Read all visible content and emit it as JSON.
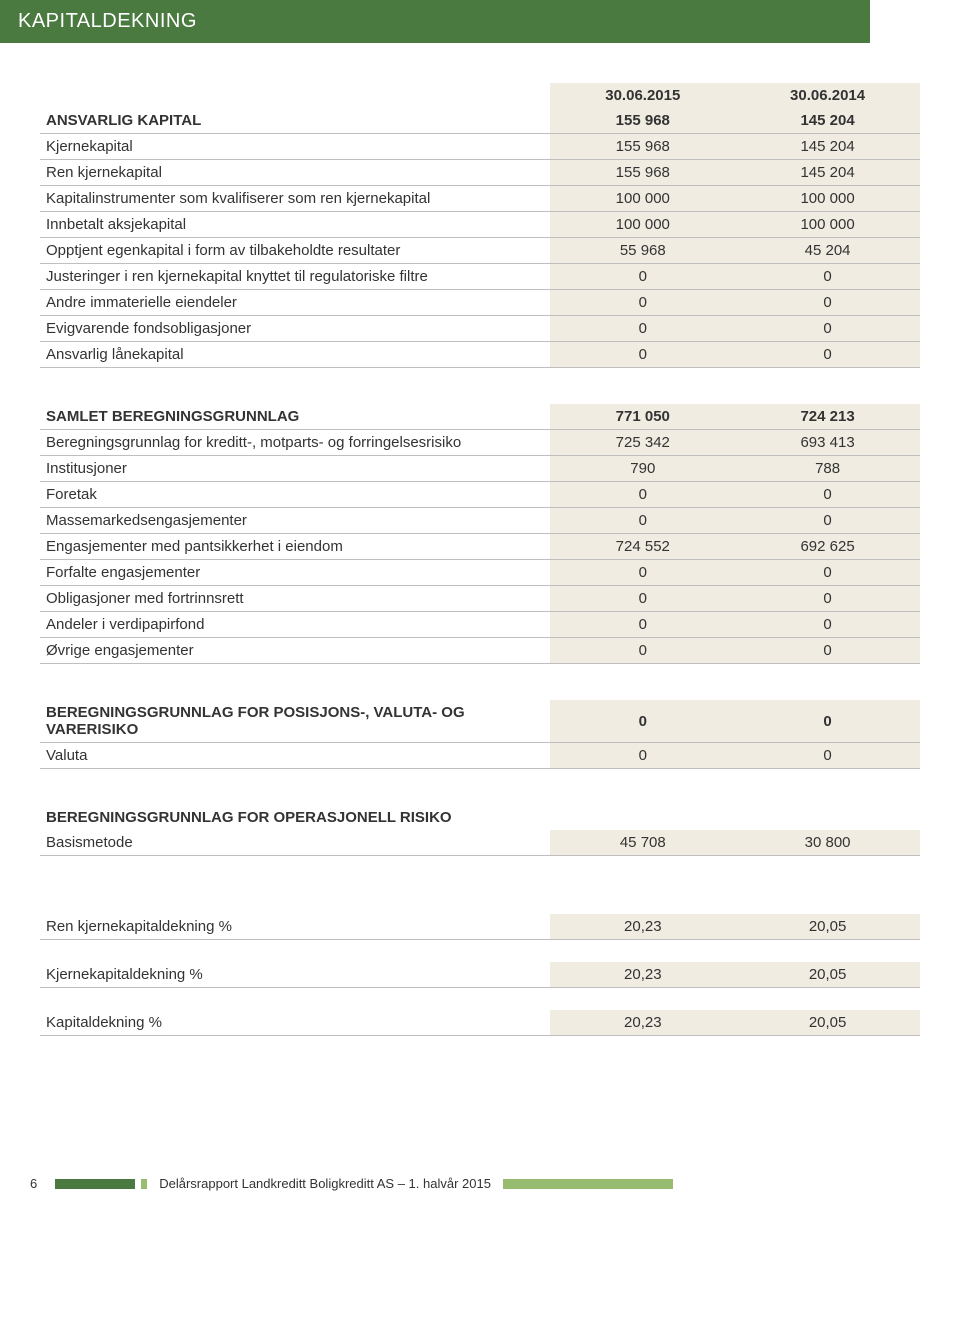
{
  "title": "KAPITALDEKNING",
  "col_headers": {
    "c1": "30.06.2015",
    "c2": "30.06.2014"
  },
  "section1": {
    "header": {
      "label": "ANSVARLIG KAPITAL",
      "c1": "155 968",
      "c2": "145 204"
    },
    "rows": [
      {
        "label": "Kjernekapital",
        "c1": "155 968",
        "c2": "145 204"
      },
      {
        "label": "Ren kjernekapital",
        "c1": "155 968",
        "c2": "145 204"
      },
      {
        "label": "Kapitalinstrumenter som kvalifiserer som ren kjernekapital",
        "c1": "100 000",
        "c2": "100 000"
      },
      {
        "label": "Innbetalt aksjekapital",
        "c1": "100 000",
        "c2": "100 000"
      },
      {
        "label": "Opptjent egenkapital i form av tilbakeholdte resultater",
        "c1": "55 968",
        "c2": "45 204"
      },
      {
        "label": "Justeringer i ren kjernekapital knyttet til regulatoriske filtre",
        "c1": "0",
        "c2": "0"
      },
      {
        "label": "Andre immaterielle eiendeler",
        "c1": "0",
        "c2": "0"
      },
      {
        "label": "Evigvarende fondsobligasjoner",
        "c1": "0",
        "c2": "0"
      },
      {
        "label": "Ansvarlig lånekapital",
        "c1": "0",
        "c2": "0"
      }
    ]
  },
  "section2": {
    "header": {
      "label": "SAMLET BEREGNINGSGRUNNLAG",
      "c1": "771 050",
      "c2": "724 213"
    },
    "rows": [
      {
        "label": "Beregningsgrunnlag for kreditt-, motparts- og forringelsesrisiko",
        "c1": "725 342",
        "c2": "693 413"
      },
      {
        "label": "Institusjoner",
        "c1": "790",
        "c2": "788"
      },
      {
        "label": "Foretak",
        "c1": "0",
        "c2": "0"
      },
      {
        "label": "Massemarkedsengasjementer",
        "c1": "0",
        "c2": "0"
      },
      {
        "label": "Engasjementer med pantsikkerhet i eiendom",
        "c1": "724 552",
        "c2": "692 625"
      },
      {
        "label": "Forfalte engasjementer",
        "c1": "0",
        "c2": "0"
      },
      {
        "label": "Obligasjoner med fortrinnsrett",
        "c1": "0",
        "c2": "0"
      },
      {
        "label": "Andeler i verdipapirfond",
        "c1": "0",
        "c2": "0"
      },
      {
        "label": "Øvrige engasjementer",
        "c1": "0",
        "c2": "0"
      }
    ]
  },
  "section3": {
    "header": {
      "label": "BEREGNINGSGRUNNLAG FOR POSISJONS-, VALUTA- OG VARERISIKO",
      "c1": "0",
      "c2": "0"
    },
    "rows": [
      {
        "label": "Valuta",
        "c1": "0",
        "c2": "0"
      }
    ]
  },
  "section4": {
    "header": {
      "label": "BEREGNINGSGRUNNLAG FOR OPERASJONELL RISIKO",
      "c1": "",
      "c2": ""
    },
    "rows": [
      {
        "label": "Basismetode",
        "c1": "45 708",
        "c2": "30 800"
      }
    ]
  },
  "ratios": [
    {
      "label": "Ren kjernekapitaldekning %",
      "c1": "20,23",
      "c2": "20,05"
    },
    {
      "label": "Kjernekapitaldekning %",
      "c1": "20,23",
      "c2": "20,05"
    },
    {
      "label": "Kapitaldekning %",
      "c1": "20,23",
      "c2": "20,05"
    }
  ],
  "footer": {
    "page_number": "6",
    "text": "Delårsrapport Landkreditt Boligkreditt AS – 1. halvår 2015"
  },
  "colors": {
    "header_bg": "#4a7a3f",
    "cell_bg": "#f0ece2",
    "rule": "#bfbfbf",
    "bar_light": "#97bb6f"
  }
}
